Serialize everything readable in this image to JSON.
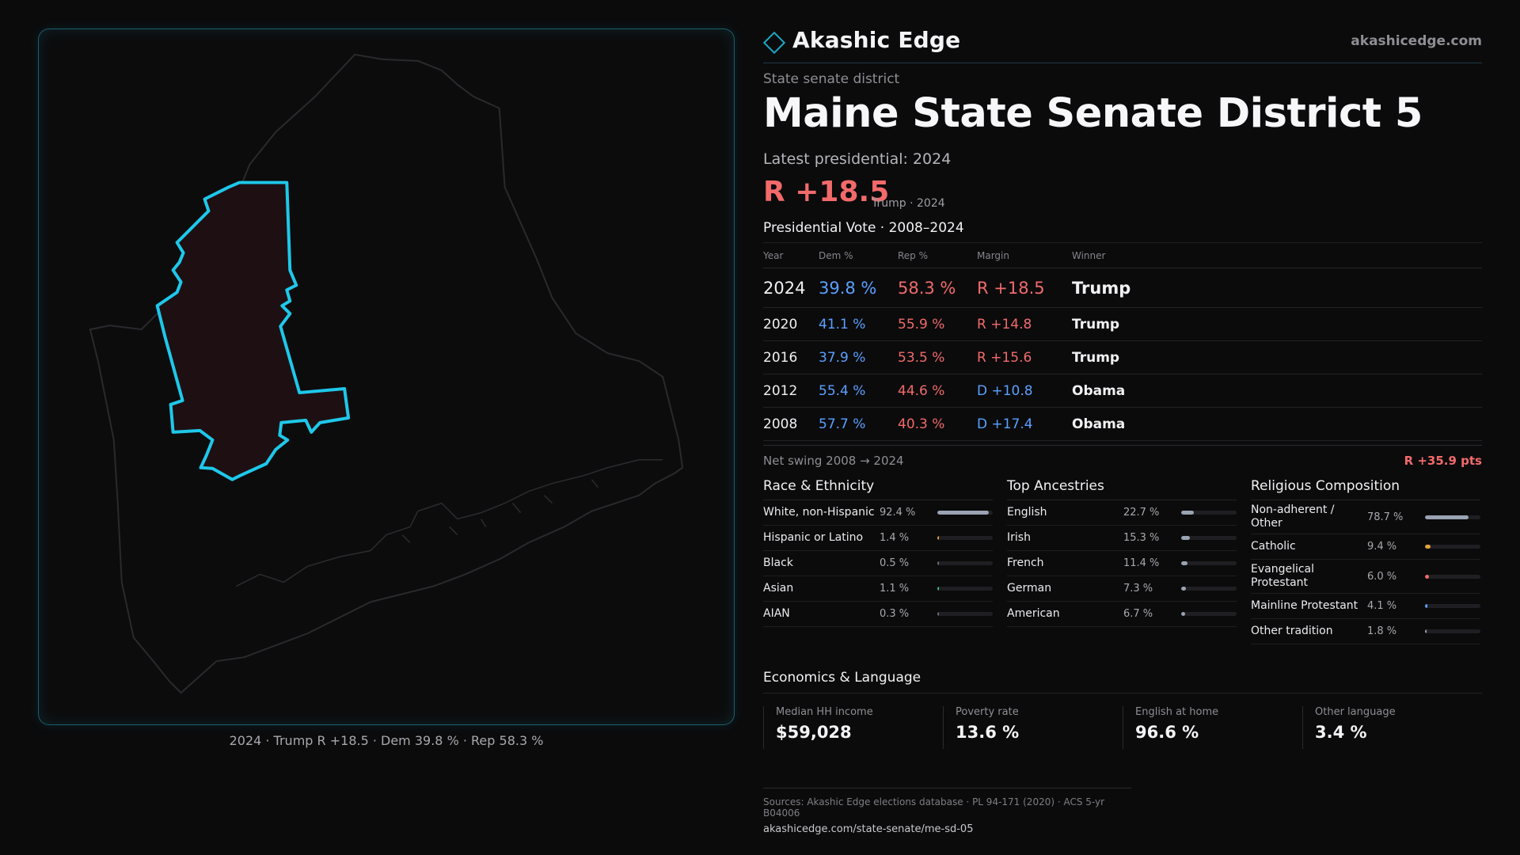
{
  "header": {
    "brand_name": "Akashic Edge",
    "brand_url": "akashicedge.com",
    "accent_color": "#1aa9c8"
  },
  "district": {
    "kicker": "State senate district",
    "title": "Maine State Senate District 5",
    "latest_label": "Latest presidential: 2024",
    "headline_margin": "R +18.5",
    "headline_sub": "Trump · 2024"
  },
  "vote_table": {
    "title": "Presidential Vote · 2008–2024",
    "headers": {
      "year": "Year",
      "dem": "Dem %",
      "rep": "Rep %",
      "margin": "Margin",
      "winner": "Winner"
    },
    "rows": [
      {
        "year": "2024",
        "dem": "39.8 %",
        "rep": "58.3 %",
        "margin": "R +18.5",
        "winner": "Trump",
        "party": "R"
      },
      {
        "year": "2020",
        "dem": "41.1 %",
        "rep": "55.9 %",
        "margin": "R +14.8",
        "winner": "Trump",
        "party": "R"
      },
      {
        "year": "2016",
        "dem": "37.9 %",
        "rep": "53.5 %",
        "margin": "R +15.6",
        "winner": "Trump",
        "party": "R"
      },
      {
        "year": "2012",
        "dem": "55.4 %",
        "rep": "44.6 %",
        "margin": "D +10.8",
        "winner": "Obama",
        "party": "D"
      },
      {
        "year": "2008",
        "dem": "57.7 %",
        "rep": "40.3 %",
        "margin": "D +17.4",
        "winner": "Obama",
        "party": "D"
      }
    ],
    "colors": {
      "dem": "#5aa0ff",
      "rep": "#f26a6a"
    }
  },
  "swing": {
    "label": "Net swing 2008 → 2024",
    "value": "R +35.9 pts"
  },
  "race": {
    "title": "Race & Ethnicity",
    "items": [
      {
        "name": "White, non-Hispanic",
        "pct": "92.4 %",
        "frac": 0.924,
        "color": "#9aa3b2"
      },
      {
        "name": "Hispanic or Latino",
        "pct": "1.4 %",
        "frac": 0.014,
        "color": "#e0a43a"
      },
      {
        "name": "Black",
        "pct": "0.5 %",
        "frac": 0.005,
        "color": "#6f6f75"
      },
      {
        "name": "Asian",
        "pct": "1.1 %",
        "frac": 0.011,
        "color": "#39c07a"
      },
      {
        "name": "AIAN",
        "pct": "0.3 %",
        "frac": 0.003,
        "color": "#6f6f75"
      }
    ]
  },
  "ancestries": {
    "title": "Top Ancestries",
    "items": [
      {
        "name": "English",
        "pct": "22.7 %",
        "frac": 0.227,
        "color": "#9aa3b2"
      },
      {
        "name": "Irish",
        "pct": "15.3 %",
        "frac": 0.153,
        "color": "#9aa3b2"
      },
      {
        "name": "French",
        "pct": "11.4 %",
        "frac": 0.114,
        "color": "#9aa3b2"
      },
      {
        "name": "German",
        "pct": "7.3 %",
        "frac": 0.073,
        "color": "#9aa3b2"
      },
      {
        "name": "American",
        "pct": "6.7 %",
        "frac": 0.067,
        "color": "#9aa3b2"
      }
    ]
  },
  "religion": {
    "title": "Religious Composition",
    "items": [
      {
        "name": "Non-adherent / Other",
        "pct": "78.7 %",
        "frac": 0.787,
        "color": "#9aa3b2"
      },
      {
        "name": "Catholic",
        "pct": "9.4 %",
        "frac": 0.094,
        "color": "#e0a43a"
      },
      {
        "name": "Evangelical Protestant",
        "pct": "6.0 %",
        "frac": 0.06,
        "color": "#f26a6a"
      },
      {
        "name": "Mainline Protestant",
        "pct": "4.1 %",
        "frac": 0.041,
        "color": "#5aa0ff"
      },
      {
        "name": "Other tradition",
        "pct": "1.8 %",
        "frac": 0.018,
        "color": "#9aa3b2"
      }
    ]
  },
  "economics": {
    "title": "Economics & Language",
    "items": [
      {
        "label": "Median HH income",
        "value": "$59,028"
      },
      {
        "label": "Poverty rate",
        "value": "13.6 %"
      },
      {
        "label": "English at home",
        "value": "96.6 %"
      },
      {
        "label": "Other language",
        "value": "3.4 %"
      }
    ]
  },
  "map": {
    "caption": "2024 · Trump R +18.5 · Dem 39.8 % · Rep 58.3 %",
    "district_outline_color": "#1ec8ea",
    "district_fill_color": "#1e1012"
  },
  "footer": {
    "sources": "Sources: Akashic Edge elections database · PL 94-171 (2020) · ACS 5-yr B04006",
    "url": "akashicedge.com/state-senate/me-sd-05"
  }
}
